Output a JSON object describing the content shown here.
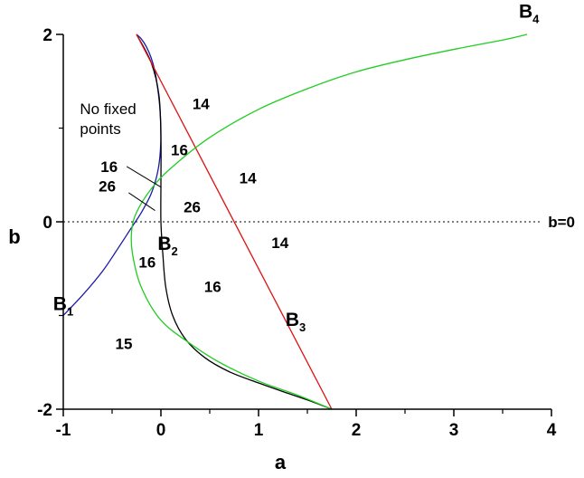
{
  "chart_data": {
    "type": "line",
    "title": "",
    "xlabel": "a",
    "ylabel": "b",
    "xlim": [
      -1,
      4
    ],
    "ylim": [
      -2,
      2
    ],
    "x_ticks": [
      -1,
      0,
      1,
      2,
      3,
      4
    ],
    "y_ticks": [
      -2,
      0,
      2
    ],
    "grid": false,
    "colors": {
      "B1": "#1a1aa8",
      "B2": "#000000",
      "B3": "#dd1111",
      "B4": "#22cc22",
      "zero_line": "#000000"
    },
    "series": [
      {
        "name": "B1",
        "main": "B",
        "sub": "1",
        "x": [
          -1.0,
          -0.8,
          -0.6,
          -0.45,
          -0.3,
          -0.2,
          -0.1,
          -0.04,
          -0.01,
          0.0,
          -0.01,
          -0.03,
          -0.06,
          -0.1,
          -0.15,
          -0.2,
          -0.25
        ],
        "y": [
          -1.0,
          -0.78,
          -0.53,
          -0.3,
          -0.06,
          0.1,
          0.3,
          0.5,
          0.7,
          0.95,
          1.2,
          1.4,
          1.6,
          1.75,
          1.87,
          1.95,
          2.0
        ]
      },
      {
        "name": "B2",
        "main": "B",
        "sub": "2",
        "x": [
          -0.25,
          -0.1,
          -0.02,
          0.0,
          0.0,
          0.0,
          0.02,
          0.05,
          0.12,
          0.25,
          0.45,
          0.7,
          1.0,
          1.3,
          1.55,
          1.75
        ],
        "y": [
          2.0,
          1.7,
          1.35,
          0.9,
          0.4,
          0.0,
          -0.35,
          -0.7,
          -1.0,
          -1.25,
          -1.45,
          -1.6,
          -1.72,
          -1.83,
          -1.92,
          -2.0
        ]
      },
      {
        "name": "B3",
        "main": "B",
        "sub": "3",
        "x": [
          -0.25,
          1.75
        ],
        "y": [
          2.0,
          -2.0
        ]
      },
      {
        "name": "B4",
        "main": "B",
        "sub": "4",
        "x": [
          1.75,
          1.4,
          1.0,
          0.6,
          0.3,
          0.0,
          -0.2,
          -0.29,
          -0.3,
          -0.25,
          -0.1,
          0.1,
          0.5,
          1.0,
          1.5,
          2.0,
          2.5,
          3.0,
          3.5,
          3.75
        ],
        "y": [
          -2.0,
          -1.85,
          -1.7,
          -1.5,
          -1.3,
          -1.05,
          -0.7,
          -0.35,
          -0.1,
          0.1,
          0.35,
          0.57,
          0.9,
          1.2,
          1.42,
          1.6,
          1.73,
          1.84,
          1.94,
          2.0
        ]
      }
    ],
    "reference_line": {
      "y": 0,
      "style": "dotted",
      "label": "b=0"
    },
    "region_labels": [
      {
        "text": "14",
        "x": 0.41,
        "y": 1.26
      },
      {
        "text": "16",
        "x": 0.19,
        "y": 0.77
      },
      {
        "text": "14",
        "x": 0.89,
        "y": 0.47
      },
      {
        "text": "26",
        "x": 0.32,
        "y": 0.16
      },
      {
        "text": "14",
        "x": 1.22,
        "y": -0.22
      },
      {
        "text": "16",
        "x": -0.14,
        "y": -0.43
      },
      {
        "text": "16",
        "x": 0.53,
        "y": -0.69
      },
      {
        "text": "15",
        "x": -0.38,
        "y": -1.3
      },
      {
        "text": "16",
        "x": -0.53,
        "y": 0.59
      },
      {
        "text": "26",
        "x": -0.55,
        "y": 0.38
      }
    ],
    "annotations": [
      {
        "text": "No fixed points",
        "lines": [
          "No fixed",
          "points"
        ],
        "x": -0.83,
        "y": 1.15
      }
    ],
    "pointer_lines": [
      {
        "from": [
          -0.35,
          0.59
        ],
        "to": [
          0.0,
          0.37
        ]
      },
      {
        "from": [
          -0.33,
          0.31
        ],
        "to": [
          -0.06,
          0.12
        ]
      }
    ],
    "curve_labels": [
      {
        "series": "B1",
        "x": -1.0,
        "y": -0.94
      },
      {
        "series": "B2",
        "x": 0.07,
        "y": -0.3
      },
      {
        "series": "B3",
        "x": 1.38,
        "y": -1.11
      },
      {
        "series": "B4",
        "x": 3.77,
        "y": 2.18
      }
    ]
  }
}
